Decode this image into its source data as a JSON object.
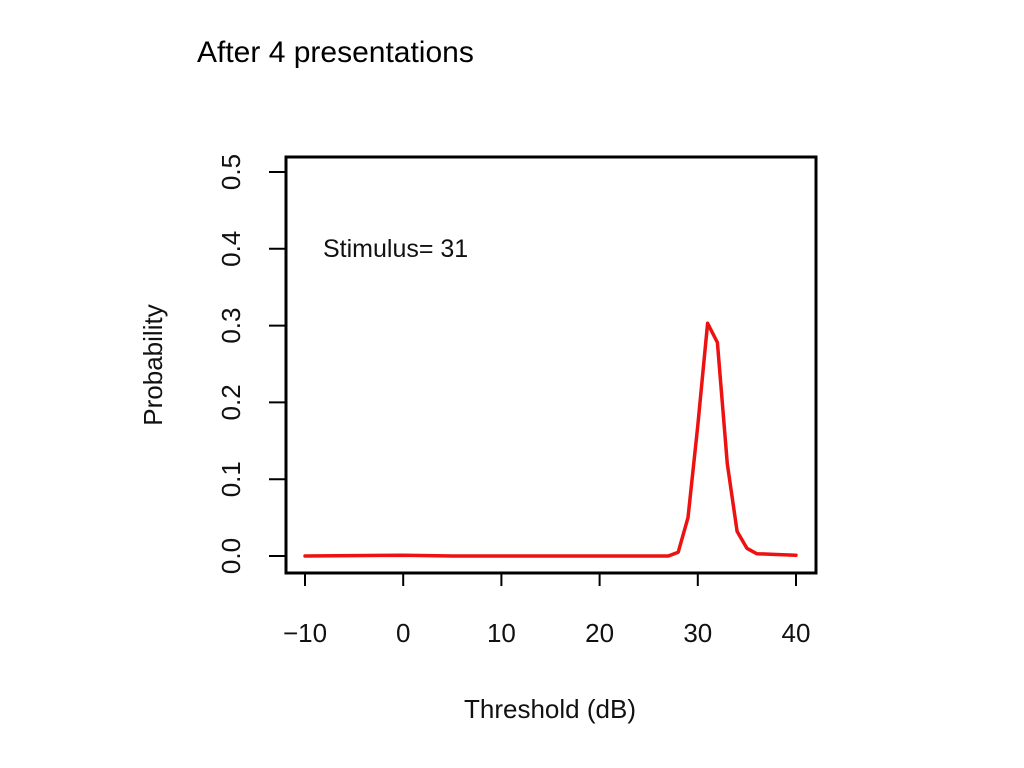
{
  "slide": {
    "title": "After 4 presentations"
  },
  "chart_data": {
    "type": "line",
    "title": "",
    "xlabel": "Threshold (dB)",
    "ylabel": "Probability",
    "xlim": [
      -10,
      40
    ],
    "ylim": [
      0,
      0.5
    ],
    "x_ticks": [
      "−10",
      "0",
      "10",
      "20",
      "30",
      "40"
    ],
    "y_ticks": [
      "0.0",
      "0.1",
      "0.2",
      "0.3",
      "0.4",
      "0.5"
    ],
    "annotation": "Stimulus= 31",
    "grid": false,
    "series": [
      {
        "color": "#ee1111",
        "x": [
          -10,
          0,
          5,
          10,
          20,
          27,
          28,
          29,
          30,
          31,
          32,
          33,
          34,
          35,
          36,
          38,
          40
        ],
        "y": [
          0.0,
          0.001,
          0.0,
          0.0,
          0.0,
          0.0,
          0.005,
          0.05,
          0.17,
          0.303,
          0.278,
          0.12,
          0.032,
          0.01,
          0.003,
          0.002,
          0.001
        ]
      }
    ]
  }
}
